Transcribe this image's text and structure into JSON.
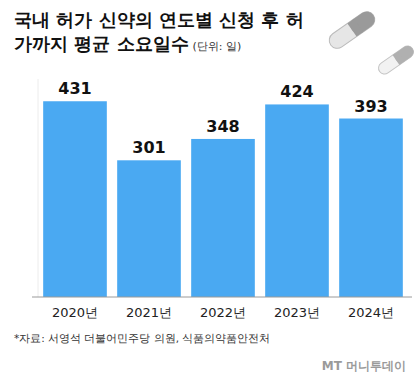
{
  "chart_data": {
    "type": "bar",
    "title": "국내 허가 신약의 연도별 신청 후 허가까지 평균 소요일수",
    "unit": "(단위: 일)",
    "categories": [
      "2020년",
      "2021년",
      "2022년",
      "2023년",
      "2024년"
    ],
    "values": [
      431,
      301,
      348,
      424,
      393
    ],
    "color": "#4aa9f2",
    "ylim": [
      0,
      480
    ],
    "yticks": [
      0
    ],
    "grid": false,
    "data_labels": true,
    "tick_labels": "x",
    "source": "*자료: 서영석 더불어민주당 의원, 식품의약품안전처",
    "credit": "MT 머니투데이"
  }
}
